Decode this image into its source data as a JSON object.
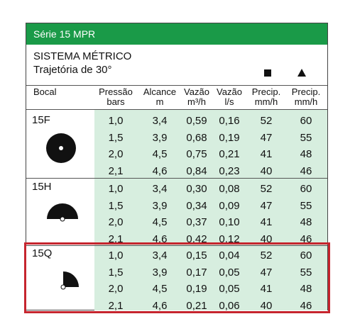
{
  "title": "Série 15 MPR",
  "system": {
    "line1": "SISTEMA MÉTRICO",
    "line2": "Trajetória de 30°"
  },
  "headers": {
    "bocal": "Bocal",
    "pressao": [
      "Pressão",
      "bars"
    ],
    "alcance": [
      "Alcance",
      "m"
    ],
    "vazao_m3h": [
      "Vazão",
      "m³/h"
    ],
    "vazao_ls": [
      "Vazão",
      "l/s"
    ],
    "precip_sq": [
      "Precip.",
      "mm/h"
    ],
    "precip_tri": [
      "Precip.",
      "mm/h"
    ]
  },
  "colors": {
    "header_green": "#1a9a48",
    "shade_green": "#d7eedf",
    "highlight_red": "#c6252e"
  },
  "groups": [
    {
      "bocal": "15F",
      "icon": "full-circle-nozzle-icon",
      "rows": [
        [
          "1,0",
          "3,4",
          "0,59",
          "0,16",
          "52",
          "60"
        ],
        [
          "1,5",
          "3,9",
          "0,68",
          "0,19",
          "47",
          "55"
        ],
        [
          "2,0",
          "4,5",
          "0,75",
          "0,21",
          "41",
          "48"
        ],
        [
          "2,1",
          "4,6",
          "0,84",
          "0,23",
          "40",
          "46"
        ]
      ]
    },
    {
      "bocal": "15H",
      "icon": "half-circle-nozzle-icon",
      "rows": [
        [
          "1,0",
          "3,4",
          "0,30",
          "0,08",
          "52",
          "60"
        ],
        [
          "1,5",
          "3,9",
          "0,34",
          "0,09",
          "47",
          "55"
        ],
        [
          "2,0",
          "4,5",
          "0,37",
          "0,10",
          "41",
          "48"
        ],
        [
          "2,1",
          "4,6",
          "0,42",
          "0,12",
          "40",
          "46"
        ]
      ]
    },
    {
      "bocal": "15Q",
      "icon": "quarter-circle-nozzle-icon",
      "rows": [
        [
          "1,0",
          "3,4",
          "0,15",
          "0,04",
          "52",
          "60"
        ],
        [
          "1,5",
          "3,9",
          "0,17",
          "0,05",
          "47",
          "55"
        ],
        [
          "2,0",
          "4,5",
          "0,19",
          "0,05",
          "41",
          "48"
        ],
        [
          "2,1",
          "4,6",
          "0,21",
          "0,06",
          "40",
          "46"
        ]
      ]
    }
  ]
}
